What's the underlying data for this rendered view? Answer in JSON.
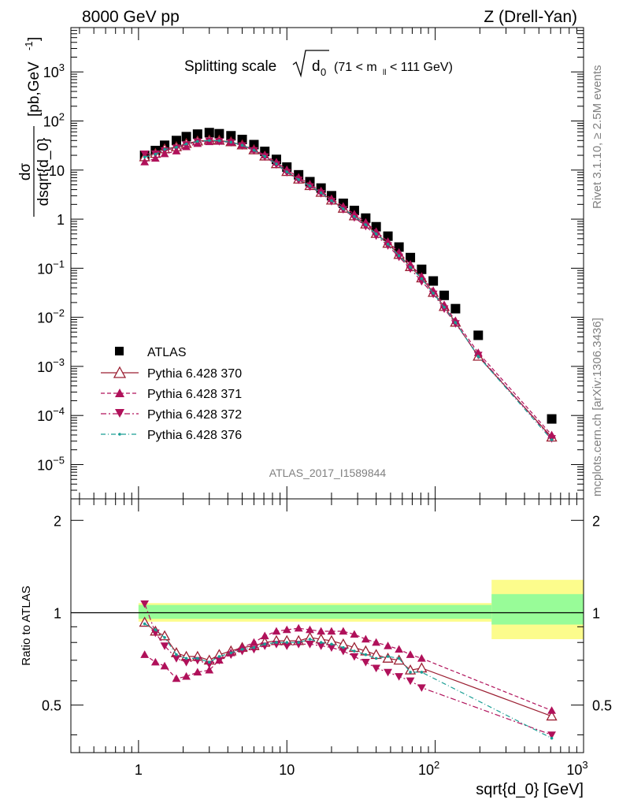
{
  "header": {
    "left": "8000 GeV pp",
    "right": "Z (Drell-Yan)"
  },
  "side": {
    "rivet": "Rivet 3.1.10, ≥ 2.5M events",
    "mcplots": "mcplots.cern.ch [arXiv:1306.3436]"
  },
  "plot_title": {
    "main": "Splitting scale",
    "var": "d",
    "sub": "0",
    "range": "(71 < m",
    "range_sub": "ll",
    "range_end": " < 111 GeV)"
  },
  "analysis_id": "ATLAS_2017_I1589844",
  "y_label_top": {
    "num": "dσ",
    "den": "dsqrt{d_0}",
    "unit": "[pb,GeV",
    "unit_sup": "-1",
    "unit_end": "]"
  },
  "y_label_bottom": "Ratio to ATLAS",
  "x_label": "sqrt{d_0} [GeV]",
  "legend": [
    {
      "label": "ATLAS"
    },
    {
      "label": "Pythia 6.428 370"
    },
    {
      "label": "Pythia 6.428 371"
    },
    {
      "label": "Pythia 6.428 372"
    },
    {
      "label": "Pythia 6.428 376"
    }
  ],
  "colors": {
    "data": "#000000",
    "p370": "#9b1f32",
    "p371": "#b0115a",
    "p372": "#b0115a",
    "p376": "#199e94",
    "band_green": "#98fc98",
    "band_yellow": "#fcfc8c"
  },
  "chart_data": {
    "type": "scatter",
    "x_scale": "log",
    "y_scale": "log",
    "xlim": [
      0.35,
      1000
    ],
    "ylim_top": [
      2e-06,
      8000
    ],
    "ylim_ratio": [
      0.35,
      2.35
    ],
    "x_tick_labels": [
      "1",
      "10",
      "10^2",
      "10^3"
    ],
    "y_tick_labels_top": [
      "10^-5",
      "10^-4",
      "10^-3",
      "10^-2",
      "10^-1",
      "1",
      "10",
      "10^2",
      "10^3"
    ],
    "y_tick_labels_ratio": [
      "0.5",
      "1",
      "2"
    ],
    "x": [
      1.1,
      1.3,
      1.5,
      1.8,
      2.1,
      2.5,
      3.0,
      3.5,
      4.2,
      5.0,
      6.0,
      7.1,
      8.5,
      10.0,
      12.0,
      14.3,
      17.0,
      20.0,
      24.0,
      28.5,
      34.0,
      40.0,
      48.0,
      57.0,
      68.0,
      81.0,
      97.0,
      115.0,
      137.0,
      195.0,
      610.0
    ],
    "series": [
      {
        "name": "ATLAS",
        "values": [
          20,
          25,
          32,
          40,
          48,
          54,
          58,
          55,
          50,
          42,
          33,
          24,
          16.5,
          11.5,
          8.0,
          5.8,
          4.3,
          3.0,
          2.1,
          1.5,
          1.05,
          0.7,
          0.45,
          0.27,
          0.165,
          0.095,
          0.055,
          0.028,
          0.015,
          0.0043,
          8.5e-05
        ]
      },
      {
        "name": "Pythia 6.428 370",
        "values": [
          18.5,
          21.7,
          26.9,
          29.6,
          34.6,
          38.9,
          40.6,
          40.2,
          37.5,
          32.3,
          25.7,
          19.2,
          13.4,
          9.3,
          6.5,
          4.8,
          3.5,
          2.43,
          1.66,
          1.16,
          0.79,
          0.51,
          0.32,
          0.19,
          0.107,
          0.063,
          0.032,
          0.0165,
          0.0079,
          0.0016,
          3.6e-05
        ]
      },
      {
        "name": "Pythia 6.428 371",
        "values": [
          14.6,
          17.3,
          21.4,
          24.4,
          29.8,
          34.6,
          37.7,
          38.5,
          37.0,
          32.3,
          26.4,
          20.2,
          14.4,
          10.2,
          7.1,
          5.1,
          3.75,
          2.6,
          1.82,
          1.27,
          0.86,
          0.56,
          0.35,
          0.21,
          0.12,
          0.068,
          0.035,
          0.018,
          0.0085,
          0.0019,
          4e-05
        ]
      },
      {
        "name": "Pythia 6.428 372",
        "values": [
          21.4,
          21.5,
          25.0,
          28.4,
          33.1,
          37.8,
          39.4,
          38.5,
          36.5,
          31.5,
          25.1,
          18.7,
          13.0,
          9.0,
          6.3,
          4.6,
          3.35,
          2.31,
          1.58,
          1.08,
          0.72,
          0.46,
          0.29,
          0.17,
          0.098,
          0.054,
          0.03,
          0.015,
          0.0075,
          0.0017,
          3.4e-05
        ]
      },
      {
        "name": "Pythia 6.428 376",
        "values": [
          18.4,
          21.0,
          26.4,
          29.2,
          34.1,
          38.4,
          40.0,
          39.6,
          37.0,
          32.0,
          25.4,
          19.0,
          13.3,
          9.2,
          6.4,
          4.75,
          3.45,
          2.38,
          1.62,
          1.13,
          0.77,
          0.5,
          0.31,
          0.18,
          0.105,
          0.061,
          0.031,
          0.016,
          0.0078,
          0.0016,
          3.2e-05
        ]
      }
    ],
    "ratio_series": [
      {
        "name": "Pythia 6.428 370",
        "values": [
          0.93,
          0.87,
          0.84,
          0.74,
          0.72,
          0.72,
          0.7,
          0.73,
          0.75,
          0.77,
          0.78,
          0.8,
          0.81,
          0.81,
          0.81,
          0.83,
          0.82,
          0.81,
          0.79,
          0.77,
          0.75,
          0.73,
          0.71,
          0.7,
          0.65,
          0.66,
          null,
          null,
          null,
          null,
          0.46
        ]
      },
      {
        "name": "Pythia 6.428 371",
        "values": [
          0.73,
          0.69,
          0.67,
          0.61,
          0.62,
          0.64,
          0.65,
          0.7,
          0.74,
          0.77,
          0.8,
          0.84,
          0.87,
          0.88,
          0.89,
          0.88,
          0.87,
          0.87,
          0.87,
          0.85,
          0.82,
          0.8,
          0.78,
          0.76,
          0.73,
          0.71,
          null,
          null,
          null,
          null,
          0.48
        ]
      },
      {
        "name": "Pythia 6.428 372",
        "values": [
          1.07,
          0.86,
          0.78,
          0.71,
          0.69,
          0.7,
          0.68,
          0.7,
          0.73,
          0.75,
          0.76,
          0.78,
          0.79,
          0.78,
          0.79,
          0.79,
          0.78,
          0.77,
          0.75,
          0.72,
          0.69,
          0.66,
          0.64,
          0.62,
          0.6,
          0.57,
          null,
          null,
          null,
          null,
          0.4
        ]
      },
      {
        "name": "Pythia 6.428 376",
        "values": [
          0.92,
          0.88,
          0.83,
          0.73,
          0.71,
          0.71,
          0.69,
          0.72,
          0.74,
          0.76,
          0.77,
          0.79,
          0.8,
          0.8,
          0.8,
          0.82,
          0.8,
          0.79,
          0.77,
          0.75,
          0.73,
          0.71,
          0.72,
          0.71,
          0.64,
          0.64,
          null,
          null,
          null,
          null,
          0.39
        ]
      }
    ],
    "bands": {
      "edges": [
        1.0,
        240.0,
        1000.0
      ],
      "green": [
        [
          0.955,
          1.06
        ],
        [
          0.915,
          1.15
        ]
      ],
      "yellow": [
        [
          0.935,
          1.075
        ],
        [
          0.82,
          1.28
        ]
      ]
    },
    "legend_position": "left"
  }
}
